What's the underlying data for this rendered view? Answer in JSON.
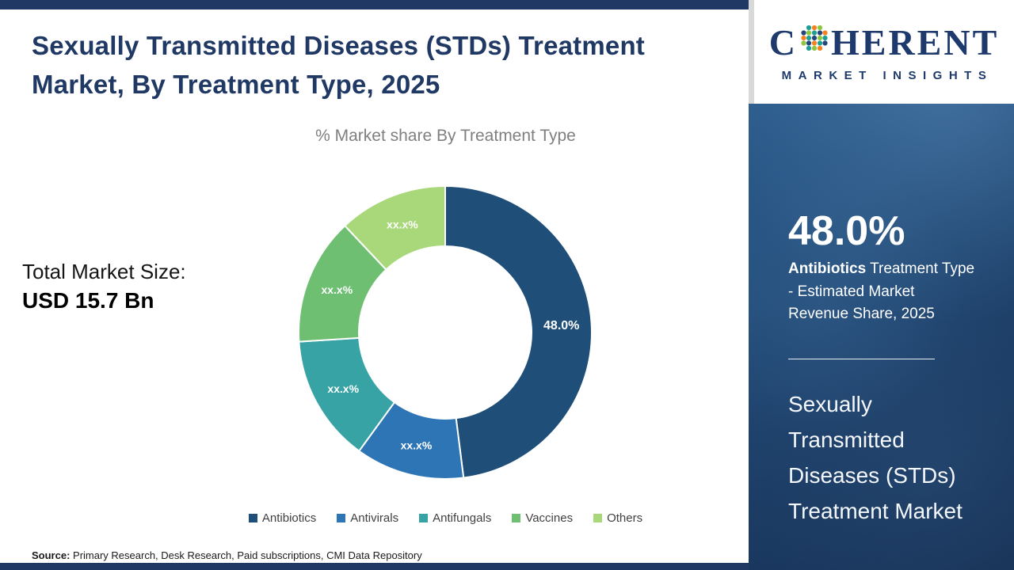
{
  "header": {
    "title_line1": "Sexually Transmitted Diseases (STDs) Treatment",
    "title_line2": "Market, By Treatment Type, 2025"
  },
  "main": {
    "total_market_label": "Total Market Size:",
    "total_market_value": "USD 15.7 Bn",
    "source_label": "Source:",
    "source_text": " Primary Research, Desk Research, Paid subscriptions, CMI Data Repository"
  },
  "chart_data": {
    "type": "pie",
    "variant": "donut",
    "title": "% Market share By Treatment Type",
    "categories": [
      "Antibiotics",
      "Antivirals",
      "Antifungals",
      "Vaccines",
      "Others"
    ],
    "value_labels": [
      "48.0%",
      "xx.x%",
      "xx.x%",
      "xx.x%",
      "xx.x%"
    ],
    "values": [
      48,
      12,
      14,
      14,
      12
    ],
    "colors": [
      "#1f4e79",
      "#2e75b6",
      "#38a3a5",
      "#6fbf73",
      "#a9d87a"
    ],
    "legend_position": "bottom",
    "donut_hole_ratio": 0.59,
    "note": "Only the Antibiotics share (48.0%) is disclosed in the image; other segment values are masked as xx.x% and rendered from visual estimates"
  },
  "sidebar": {
    "logo_c": "C",
    "logo_rest": "HERENT",
    "logo_sub": "MARKET INSIGHTS",
    "stat_value": "48.0%",
    "stat_bold": "Antibiotics",
    "stat_rest": " Treatment Type - Estimated Market Revenue Share, 2025",
    "footer_title": "Sexually Transmitted Diseases (STDs) Treatment Market"
  }
}
